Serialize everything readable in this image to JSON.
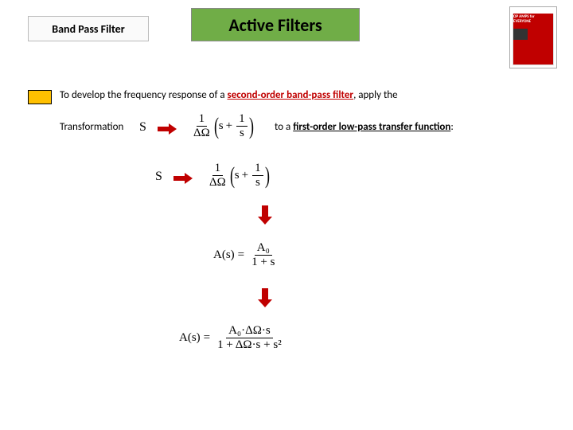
{
  "header": {
    "subtitle": "Band Pass Filter",
    "title": "Active Filters",
    "book": {
      "line1": "OP AMPS for",
      "line2": "EVERYONE"
    }
  },
  "colors": {
    "title_bg": "#70ad47",
    "bullet_bg": "#ffc000",
    "accent_red": "#c00000",
    "text": "#000000",
    "background": "#ffffff"
  },
  "body": {
    "line1_pre": "To develop the frequency response of a ",
    "line1_em": "second-order band-pass filter",
    "line1_post": ", apply the",
    "line2_label": "Transformation",
    "s1": "S",
    "s2": "S",
    "transform_formula": {
      "lead_num": "1",
      "lead_den": "ΔΩ",
      "inner_left": "s",
      "plus": "+",
      "inner_num": "1",
      "inner_den": "s"
    },
    "line2b_pre": "to a ",
    "line2b_bold": "first-order low-pass transfer function",
    "line2b_post": ":",
    "formula_lp": {
      "lhs": "A(s)",
      "eq": "=",
      "num": "A₀",
      "den_pre": "1 + ",
      "den_var": "s"
    },
    "formula_bp": {
      "lhs": "A(s)",
      "eq": "=",
      "num": "A₀·ΔΩ·s",
      "den": "1 + ΔΩ·s + s²"
    }
  }
}
